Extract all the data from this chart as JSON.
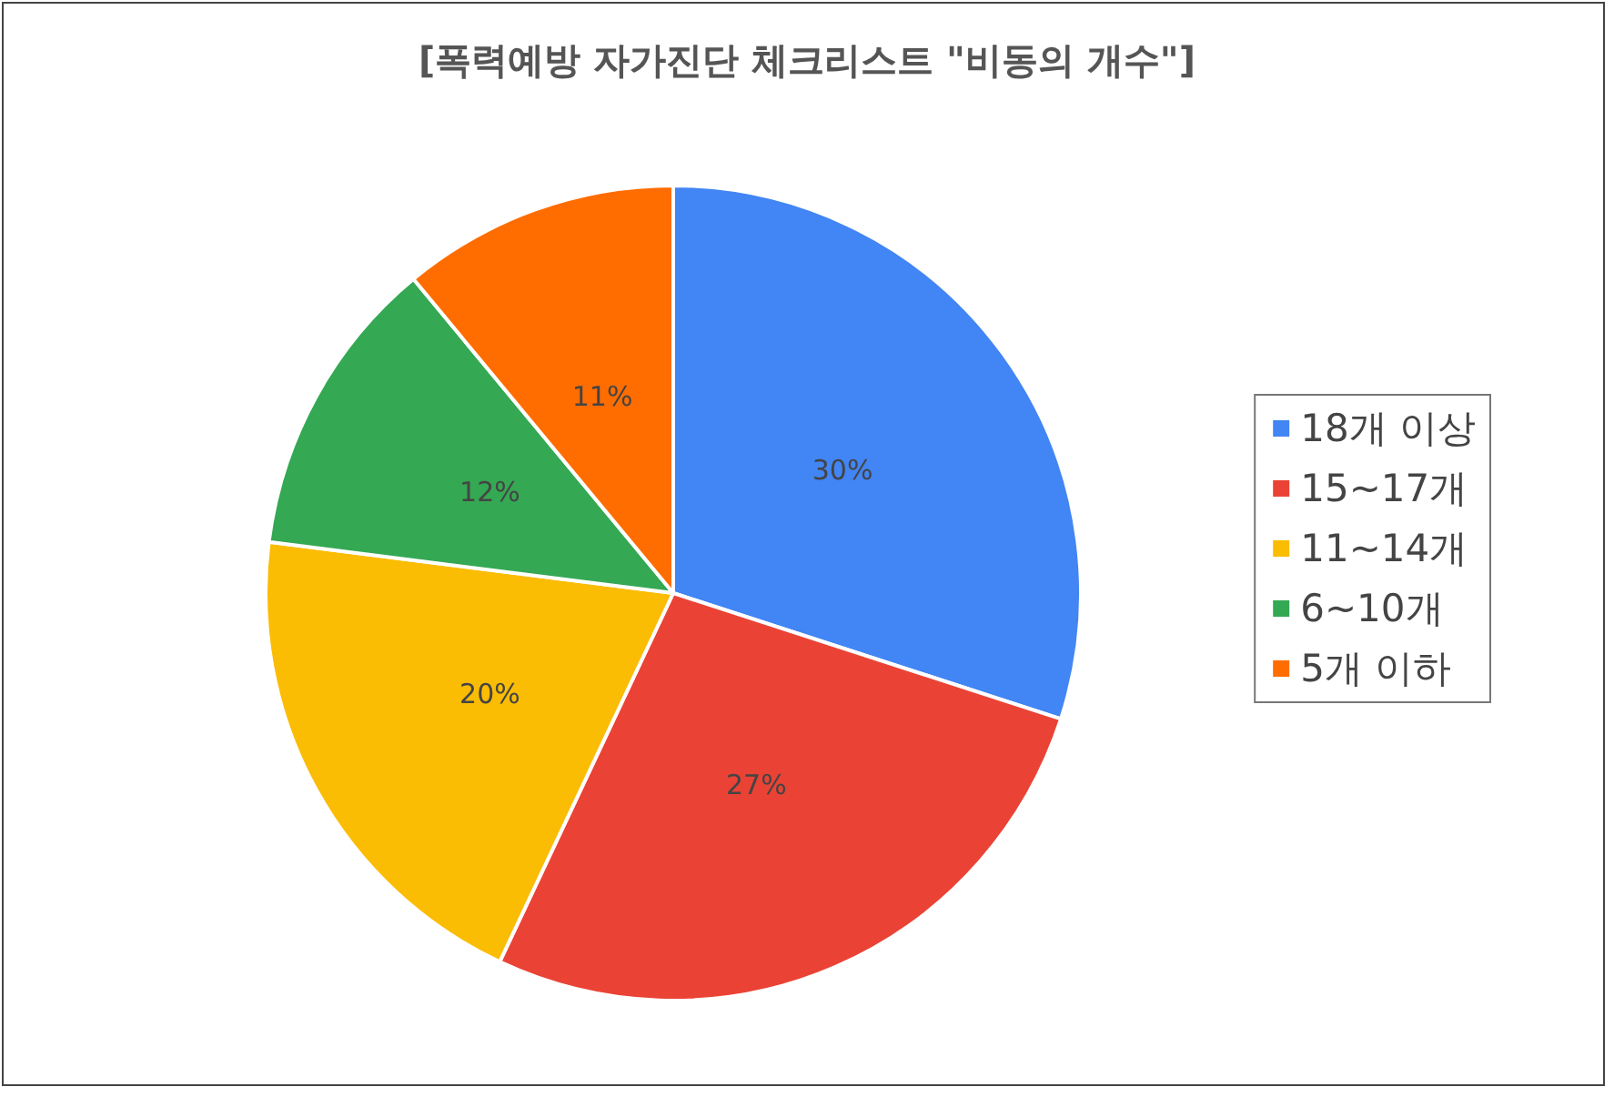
{
  "chart_data": {
    "type": "pie",
    "title": "[폭력예방 자가진단 체크리스트 \"비동의 개수\"]",
    "categories": [
      "18개 이상",
      "15~17개",
      "11~14개",
      "6~10개",
      "5개 이하"
    ],
    "values": [
      30,
      27,
      20,
      12,
      11
    ],
    "colors": [
      "#4285f4",
      "#ea4335",
      "#fbbc04",
      "#34a853",
      "#ff6d01"
    ],
    "value_labels": [
      "30%",
      "27%",
      "20%",
      "12%",
      "11%"
    ],
    "legend": "right"
  }
}
